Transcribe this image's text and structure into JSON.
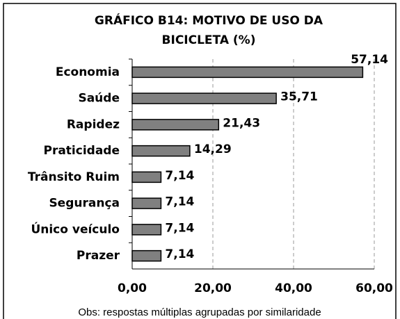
{
  "chart_data": {
    "type": "bar",
    "orientation": "horizontal",
    "title": [
      "GRÁFICO B14: MOTIVO DE USO DA",
      "BICICLETA (%)"
    ],
    "categories": [
      "Economia",
      "Saúde",
      "Rapidez",
      "Praticidade",
      "Trânsito Ruim",
      "Segurança",
      "Único veículo",
      "Prazer"
    ],
    "values": [
      57.14,
      35.71,
      21.43,
      14.29,
      7.14,
      7.14,
      7.14,
      7.14
    ],
    "value_labels": [
      "57,14",
      "35,71",
      "21,43",
      "14,29",
      "7,14",
      "7,14",
      "7,14",
      "7,14"
    ],
    "color": "#808080",
    "xlim": [
      0,
      60
    ],
    "xticks": [
      {
        "value": 0,
        "label": "0,00"
      },
      {
        "value": 20,
        "label": "20,00"
      },
      {
        "value": 40,
        "label": "40,00"
      },
      {
        "value": 60,
        "label": "60,00"
      }
    ],
    "grid": true,
    "note": "Obs: respostas múltiplas agrupadas por similaridade"
  }
}
